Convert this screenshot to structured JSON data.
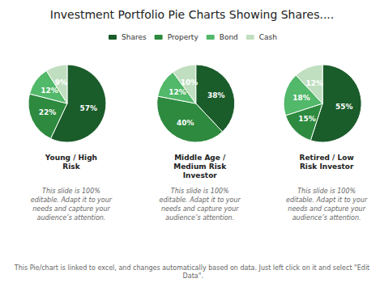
{
  "chart_data": {
    "type": "pie",
    "title": "Investment Portfolio Pie Charts Showing Shares....",
    "categories": [
      "Shares",
      "Property",
      "Bond",
      "Cash"
    ],
    "colors": [
      "#1a5c2a",
      "#2d8a3e",
      "#52b86a",
      "#c0dfc0"
    ],
    "legend": "top",
    "data_labels": true,
    "series": [
      {
        "name": "Young / High\nRisk",
        "values": [
          57,
          22,
          12,
          9
        ],
        "value_labels": [
          "57%",
          "22%",
          "12%",
          "9%"
        ],
        "annotation": "This slide is 100%\neditable. Adapt it to your\nneeds and capture your\naudience’s attention."
      },
      {
        "name": "Middle Age /\nMedium Risk\nInvestor",
        "values": [
          38,
          40,
          12,
          10
        ],
        "value_labels": [
          "38%",
          "40%",
          "12%",
          "10%"
        ],
        "annotation": "This slide is 100%\neditable. Adapt it to your\nneeds and capture your\naudience’s attention."
      },
      {
        "name": "Retired / Low\nRisk Investor",
        "values": [
          55,
          15,
          18,
          12
        ],
        "value_labels": [
          "55%",
          "15%",
          "18%",
          "12%"
        ],
        "annotation": "This slide is 100%\neditable. Adapt it to your\nneeds and capture your\naudience’s attention."
      }
    ],
    "annotations": [
      "This Pie/chart is linked to excel, and changes automatically based on data. Just left click on it and select \"Edit Data\"."
    ]
  }
}
